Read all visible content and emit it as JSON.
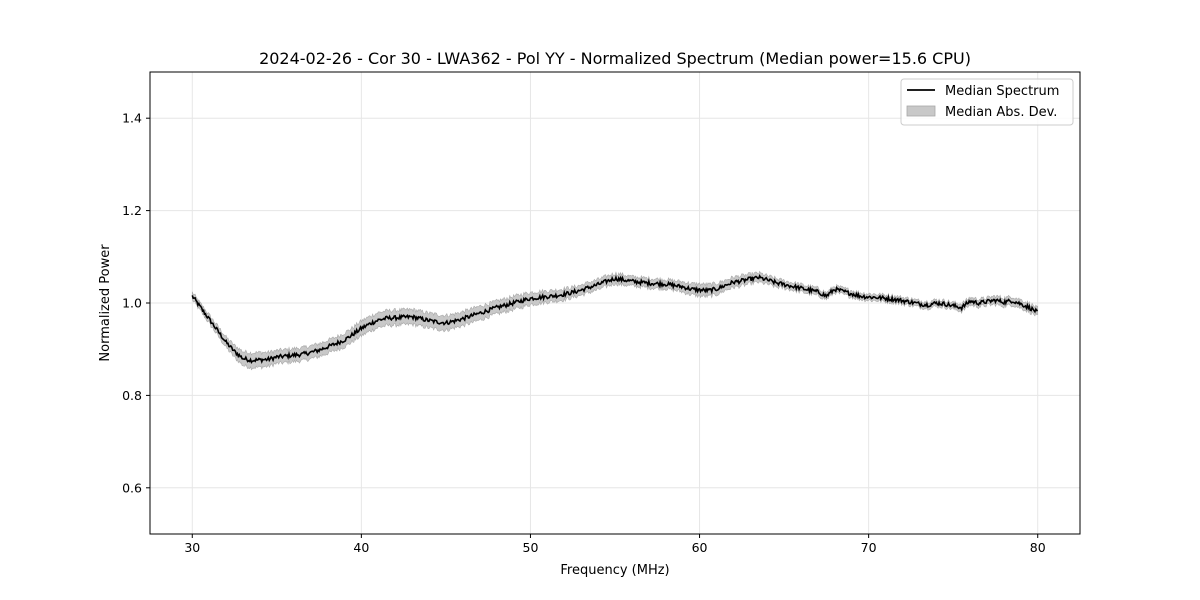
{
  "chart_data": {
    "type": "line",
    "title": "2024-02-26 - Cor 30 - LWA362 - Pol YY - Normalized Spectrum (Median power=15.6 CPU)",
    "xlabel": "Frequency (MHz)",
    "ylabel": "Normalized Power",
    "xlim": [
      27.5,
      82.5
    ],
    "ylim": [
      0.5,
      1.5
    ],
    "xticks": [
      30,
      40,
      50,
      60,
      70,
      80
    ],
    "yticks": [
      0.6,
      0.8,
      1.0,
      1.2,
      1.4
    ],
    "ytick_labels": [
      "0.6",
      "0.8",
      "1.0",
      "1.2",
      "1.4"
    ],
    "grid": true,
    "legend_position": "top-right",
    "series": [
      {
        "name": "Median Spectrum",
        "kind": "line",
        "color": "#000000",
        "x": [
          30.0,
          30.5,
          31.0,
          31.5,
          32.0,
          32.5,
          33.0,
          33.5,
          34.0,
          34.5,
          35.0,
          35.5,
          36.0,
          36.5,
          37.0,
          37.5,
          38.0,
          38.5,
          39.0,
          39.5,
          40.0,
          40.5,
          41.0,
          41.5,
          42.0,
          42.5,
          43.0,
          43.5,
          44.0,
          44.5,
          45.0,
          45.5,
          46.0,
          46.5,
          47.0,
          47.5,
          48.0,
          48.5,
          49.0,
          49.5,
          50.0,
          50.5,
          51.0,
          51.5,
          52.0,
          52.5,
          53.0,
          53.5,
          54.0,
          54.5,
          55.0,
          55.5,
          56.0,
          56.5,
          57.0,
          57.5,
          58.0,
          58.5,
          59.0,
          59.5,
          60.0,
          60.5,
          61.0,
          61.5,
          62.0,
          62.5,
          63.0,
          63.5,
          64.0,
          64.5,
          65.0,
          65.5,
          66.0,
          66.5,
          67.0,
          67.5,
          68.0,
          68.5,
          69.0,
          69.5,
          70.0,
          70.5,
          71.0,
          71.5,
          72.0,
          72.5,
          73.0,
          73.5,
          74.0,
          74.5,
          75.0,
          75.5,
          76.0,
          76.5,
          77.0,
          77.5,
          78.0,
          78.5,
          79.0,
          79.5,
          80.0
        ],
        "values": [
          1.015,
          0.99,
          0.965,
          0.94,
          0.915,
          0.895,
          0.88,
          0.876,
          0.877,
          0.878,
          0.883,
          0.885,
          0.887,
          0.889,
          0.893,
          0.898,
          0.905,
          0.912,
          0.92,
          0.932,
          0.945,
          0.955,
          0.963,
          0.967,
          0.968,
          0.969,
          0.97,
          0.966,
          0.962,
          0.959,
          0.957,
          0.961,
          0.966,
          0.972,
          0.978,
          0.984,
          0.99,
          0.995,
          1.0,
          1.005,
          1.01,
          1.012,
          1.014,
          1.016,
          1.019,
          1.023,
          1.028,
          1.034,
          1.04,
          1.047,
          1.053,
          1.05,
          1.047,
          1.045,
          1.043,
          1.042,
          1.041,
          1.038,
          1.035,
          1.03,
          1.028,
          1.027,
          1.03,
          1.038,
          1.045,
          1.048,
          1.052,
          1.055,
          1.05,
          1.044,
          1.04,
          1.036,
          1.032,
          1.028,
          1.024,
          1.015,
          1.03,
          1.025,
          1.02,
          1.015,
          1.013,
          1.012,
          1.01,
          1.008,
          1.005,
          1.002,
          0.998,
          0.996,
          1.0,
          0.998,
          0.994,
          0.99,
          1.004,
          1.0,
          1.003,
          1.006,
          1.002,
          1.005,
          0.998,
          0.99,
          0.98
        ],
        "mad": [
          0.008,
          0.008,
          0.009,
          0.01,
          0.011,
          0.013,
          0.015,
          0.016,
          0.016,
          0.015,
          0.014,
          0.014,
          0.014,
          0.014,
          0.014,
          0.014,
          0.014,
          0.014,
          0.015,
          0.015,
          0.016,
          0.016,
          0.016,
          0.016,
          0.016,
          0.016,
          0.016,
          0.016,
          0.016,
          0.016,
          0.016,
          0.015,
          0.015,
          0.015,
          0.015,
          0.014,
          0.014,
          0.014,
          0.014,
          0.014,
          0.013,
          0.013,
          0.012,
          0.012,
          0.012,
          0.011,
          0.011,
          0.011,
          0.011,
          0.011,
          0.011,
          0.011,
          0.01,
          0.01,
          0.01,
          0.01,
          0.01,
          0.01,
          0.011,
          0.012,
          0.013,
          0.013,
          0.012,
          0.011,
          0.011,
          0.011,
          0.01,
          0.01,
          0.009,
          0.009,
          0.008,
          0.008,
          0.008,
          0.008,
          0.008,
          0.007,
          0.007,
          0.007,
          0.007,
          0.007,
          0.007,
          0.007,
          0.007,
          0.007,
          0.007,
          0.007,
          0.007,
          0.007,
          0.007,
          0.007,
          0.007,
          0.008,
          0.008,
          0.008,
          0.008,
          0.009,
          0.009,
          0.009,
          0.009,
          0.009,
          0.009
        ]
      },
      {
        "name": "Median Abs. Dev.",
        "kind": "band",
        "color": "#c8c8c8"
      }
    ]
  }
}
